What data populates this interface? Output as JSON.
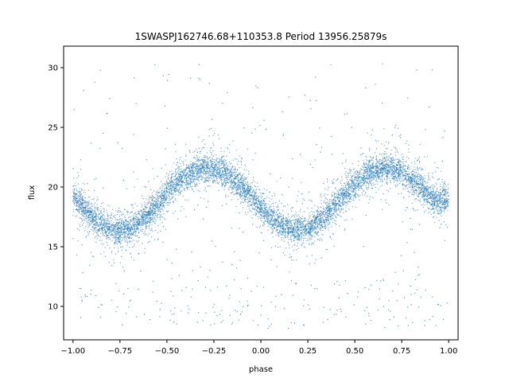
{
  "chart_data": {
    "type": "scatter",
    "title": "1SWASPJ162746.68+110353.8 Period 13956.25879s",
    "xlabel": "phase",
    "ylabel": "flux",
    "xlim": [
      -1.05,
      1.05
    ],
    "ylim": [
      7.2,
      31.8
    ],
    "xticks": [
      -1.0,
      -0.75,
      -0.5,
      -0.25,
      0.0,
      0.25,
      0.5,
      0.75,
      1.0
    ],
    "xtick_labels": [
      "−1.00",
      "−0.75",
      "−0.50",
      "−0.25",
      "0.00",
      "0.25",
      "0.50",
      "0.75",
      "1.00"
    ],
    "yticks": [
      10,
      15,
      20,
      25,
      30
    ],
    "ytick_labels": [
      "10",
      "15",
      "20",
      "25",
      "30"
    ],
    "grid": false,
    "legend": "none",
    "marker_color": "#1f77b4",
    "series": [
      {
        "x": [
          -1.0,
          -0.95,
          -0.9,
          -0.85,
          -0.8,
          -0.75,
          -0.7,
          -0.65,
          -0.6,
          -0.55,
          -0.5,
          -0.45,
          -0.4,
          -0.35,
          -0.3,
          -0.25,
          -0.2,
          -0.15,
          -0.1,
          -0.05,
          0.0,
          0.05,
          0.1,
          0.15,
          0.2,
          0.25,
          0.3,
          0.35,
          0.4,
          0.45,
          0.5,
          0.55,
          0.6,
          0.65,
          0.7,
          0.75,
          0.8,
          0.85,
          0.9,
          0.95,
          1.0
        ],
        "y": [
          19.2,
          18.3,
          17.5,
          16.9,
          16.5,
          16.4,
          16.5,
          17.0,
          17.7,
          18.6,
          19.5,
          20.3,
          20.9,
          21.3,
          21.5,
          21.5,
          21.2,
          20.7,
          20.0,
          19.2,
          18.3,
          17.5,
          16.9,
          16.5,
          16.4,
          16.5,
          17.0,
          17.7,
          18.6,
          19.5,
          20.3,
          20.9,
          21.3,
          21.5,
          21.5,
          21.2,
          20.7,
          20.0,
          19.2,
          18.7,
          19.2
        ],
        "band_halfwidth": 1.0,
        "outlier_range": [
          8.0,
          30.5
        ]
      }
    ]
  }
}
